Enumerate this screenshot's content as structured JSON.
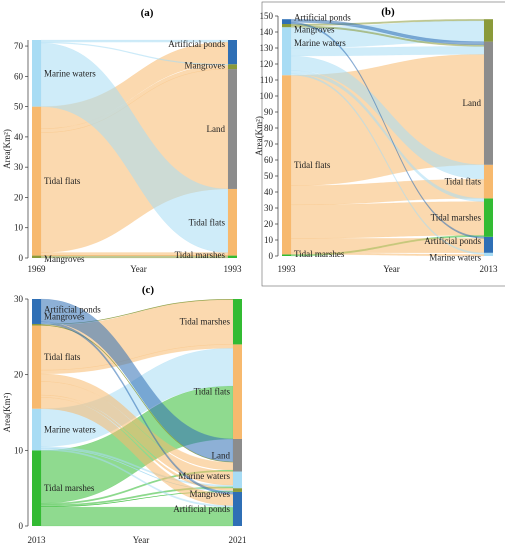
{
  "colors": {
    "Marine waters": "#a8dcf4",
    "Tidal flats": "#f7b96e",
    "Mangroves": "#8a9a3a",
    "Land": "#8c8c8c",
    "Artificial ponds": "#2f6fb5",
    "Tidal marshes": "#33bb33"
  },
  "chart_data": [
    {
      "type": "sankey",
      "title": "(a)",
      "xlabel": "Year",
      "ylabel": "Area(Km²)",
      "ylim": [
        0,
        72
      ],
      "yticks": [
        "0",
        "10",
        "20",
        "30",
        "40",
        "50",
        "60",
        "70"
      ],
      "years": [
        "1969",
        "1993"
      ],
      "left_nodes": [
        {
          "name": "Mangroves",
          "value": 0.8
        },
        {
          "name": "Tidal flats",
          "value": 49.2
        },
        {
          "name": "Marine waters",
          "value": 22
        }
      ],
      "right_nodes": [
        {
          "name": "Tidal marshes",
          "value": 0.8
        },
        {
          "name": "Tidal flats",
          "value": 22
        },
        {
          "name": "Land",
          "value": 39.6
        },
        {
          "name": "Mangroves",
          "value": 1.6
        },
        {
          "name": "Artificial ponds",
          "value": 8
        }
      ],
      "flows": [
        {
          "source": "Mangroves",
          "target": "Tidal marshes",
          "value": 0.8
        },
        {
          "source": "Tidal flats",
          "target": "Tidal marshes",
          "value": 0
        },
        {
          "source": "Tidal flats",
          "target": "Tidal flats",
          "value": 1
        },
        {
          "source": "Tidal flats",
          "target": "Land",
          "value": 39.6
        },
        {
          "source": "Tidal flats",
          "target": "Mangroves",
          "value": 1.3
        },
        {
          "source": "Tidal flats",
          "target": "Artificial ponds",
          "value": 7.3
        },
        {
          "source": "Marine waters",
          "target": "Tidal flats",
          "value": 21
        },
        {
          "source": "Marine waters",
          "target": "Mangroves",
          "value": 0.3
        },
        {
          "source": "Marine waters",
          "target": "Artificial ponds",
          "value": 0.7
        }
      ]
    },
    {
      "type": "sankey",
      "title": "(b)",
      "xlabel": "Year",
      "ylabel": "Area(Km²)",
      "ylim": [
        0,
        150
      ],
      "yticks": [
        "0",
        "10",
        "20",
        "30",
        "40",
        "50",
        "60",
        "70",
        "80",
        "90",
        "100",
        "110",
        "120",
        "130",
        "140",
        "150"
      ],
      "years": [
        "1993",
        "2013"
      ],
      "left_nodes": [
        {
          "name": "Tidal marshes",
          "value": 1
        },
        {
          "name": "Tidal flats",
          "value": 112
        },
        {
          "name": "Marine waters",
          "value": 30
        },
        {
          "name": "Mangroves",
          "value": 2
        },
        {
          "name": "Artificial ponds",
          "value": 3
        }
      ],
      "right_nodes": [
        {
          "name": "Marine waters",
          "value": 2
        },
        {
          "name": "Artificial ponds",
          "value": 10
        },
        {
          "name": "Tidal marshes",
          "value": 24
        },
        {
          "name": "Tidal flats",
          "value": 21
        },
        {
          "name": "Land",
          "value": 77
        },
        {
          "name": "Mangroves",
          "value": 14
        }
      ],
      "flows": [
        {
          "source": "Tidal marshes",
          "target": "Tidal marshes",
          "value": 1
        },
        {
          "source": "Tidal flats",
          "target": "Marine waters",
          "value": 1
        },
        {
          "source": "Tidal flats",
          "target": "Artificial ponds",
          "value": 9
        },
        {
          "source": "Tidal flats",
          "target": "Tidal marshes",
          "value": 21
        },
        {
          "source": "Tidal flats",
          "target": "Tidal flats",
          "value": 12
        },
        {
          "source": "Tidal flats",
          "target": "Land",
          "value": 69
        },
        {
          "source": "Marine waters",
          "target": "Marine waters",
          "value": 1
        },
        {
          "source": "Marine waters",
          "target": "Tidal marshes",
          "value": 2
        },
        {
          "source": "Marine waters",
          "target": "Tidal flats",
          "value": 9
        },
        {
          "source": "Marine waters",
          "target": "Land",
          "value": 5
        },
        {
          "source": "Marine waters",
          "target": "Mangroves",
          "value": 13
        },
        {
          "source": "Mangroves",
          "target": "Land",
          "value": 1
        },
        {
          "source": "Mangroves",
          "target": "Mangroves",
          "value": 1
        },
        {
          "source": "Artificial ponds",
          "target": "Artificial ponds",
          "value": 1
        },
        {
          "source": "Artificial ponds",
          "target": "Land",
          "value": 2
        }
      ]
    },
    {
      "type": "sankey",
      "title": "(c)",
      "xlabel": "Year",
      "ylabel": "Area(Km²)",
      "ylim": [
        0,
        30
      ],
      "yticks": [
        "0",
        "10",
        "20",
        "30"
      ],
      "years": [
        "2013",
        "2021"
      ],
      "left_nodes": [
        {
          "name": "Tidal marshes",
          "value": 10
        },
        {
          "name": "Marine waters",
          "value": 5.5
        },
        {
          "name": "Tidal flats",
          "value": 11
        },
        {
          "name": "Mangroves",
          "value": 0.2
        },
        {
          "name": "Artificial ponds",
          "value": 3.3
        }
      ],
      "right_nodes": [
        {
          "name": "Artificial ponds",
          "value": 4.5
        },
        {
          "name": "Mangroves",
          "value": 0.5
        },
        {
          "name": "Marine waters",
          "value": 2.2
        },
        {
          "name": "Land",
          "value": 4.3
        },
        {
          "name": "Tidal flats",
          "value": 12.5
        },
        {
          "name": "Tidal marshes",
          "value": 6
        }
      ],
      "flows": [
        {
          "source": "Tidal marshes",
          "target": "Artificial ponds",
          "value": 2.5
        },
        {
          "source": "Tidal marshes",
          "target": "Mangroves",
          "value": 0.1
        },
        {
          "source": "Tidal marshes",
          "target": "Marine waters",
          "value": 0.2
        },
        {
          "source": "Tidal marshes",
          "target": "Land",
          "value": 0.2
        },
        {
          "source": "Tidal marshes",
          "target": "Tidal flats",
          "value": 7
        },
        {
          "source": "Marine waters",
          "target": "Artificial ponds",
          "value": 0.2
        },
        {
          "source": "Marine waters",
          "target": "Mangroves",
          "value": 0.1
        },
        {
          "source": "Marine waters",
          "target": "Marine waters",
          "value": 0.2
        },
        {
          "source": "Marine waters",
          "target": "Tidal flats",
          "value": 5
        },
        {
          "source": "Tidal flats",
          "target": "Artificial ponds",
          "value": 1.5
        },
        {
          "source": "Tidal flats",
          "target": "Mangroves",
          "value": 0.3
        },
        {
          "source": "Tidal flats",
          "target": "Marine waters",
          "value": 1.8
        },
        {
          "source": "Tidal flats",
          "target": "Land",
          "value": 1
        },
        {
          "source": "Tidal flats",
          "target": "Tidal flats",
          "value": 0.5
        },
        {
          "source": "Tidal flats",
          "target": "Tidal marshes",
          "value": 5.9
        },
        {
          "source": "Mangroves",
          "target": "Tidal marshes",
          "value": 0.1
        },
        {
          "source": "Mangroves",
          "target": "Land",
          "value": 0.1
        },
        {
          "source": "Artificial ponds",
          "target": "Artificial ponds",
          "value": 0.3
        },
        {
          "source": "Artificial ponds",
          "target": "Land",
          "value": 3
        }
      ]
    }
  ]
}
